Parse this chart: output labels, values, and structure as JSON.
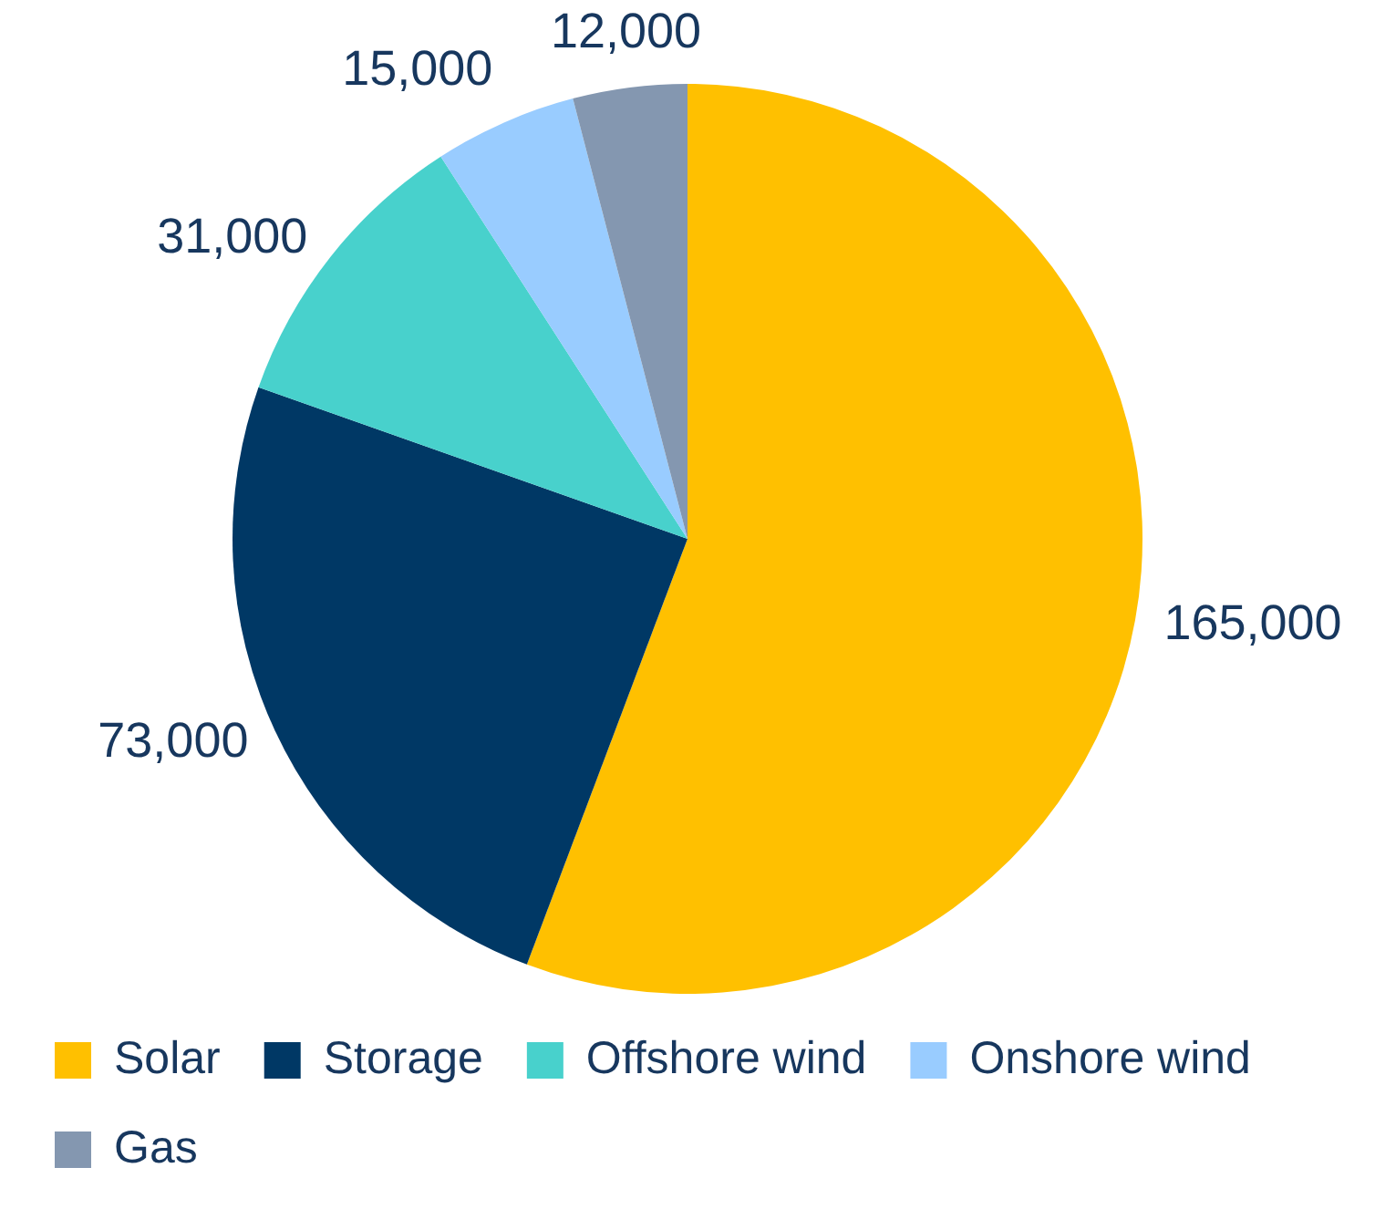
{
  "chart_data": {
    "type": "pie",
    "categories": [
      "Solar",
      "Storage",
      "Offshore wind",
      "Onshore wind",
      "Gas"
    ],
    "values": [
      165000,
      73000,
      31000,
      15000,
      12000
    ],
    "colors": [
      "#ffc000",
      "#003865",
      "#48d1cc",
      "#99ccff",
      "#8497b0"
    ],
    "value_labels": [
      "165,000",
      "73,000",
      "31,000",
      "15,000",
      "12,000"
    ],
    "legend": "bottom"
  }
}
